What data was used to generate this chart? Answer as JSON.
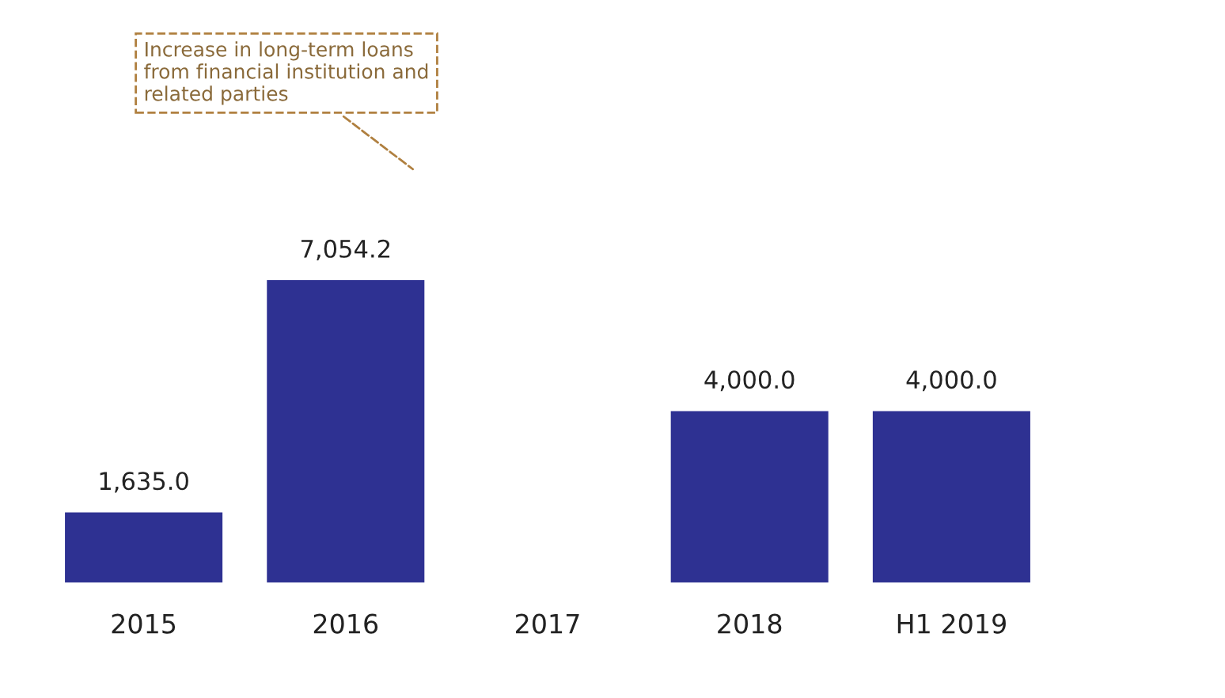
{
  "chart_data": {
    "type": "bar",
    "categories": [
      "2015",
      "2016",
      "2017",
      "2018",
      "H1 2019"
    ],
    "values": [
      1635.0,
      7054.2,
      null,
      4000.0,
      4000.0
    ],
    "color": "#2e3192",
    "value_labels": [
      "1,635.0",
      "7,054.2",
      null,
      "4,000.0",
      "4,000.0"
    ],
    "grid": false,
    "legend": false,
    "annotations": [
      "Increase in long-term loans\nfrom financial institution and\nrelated parties"
    ]
  }
}
